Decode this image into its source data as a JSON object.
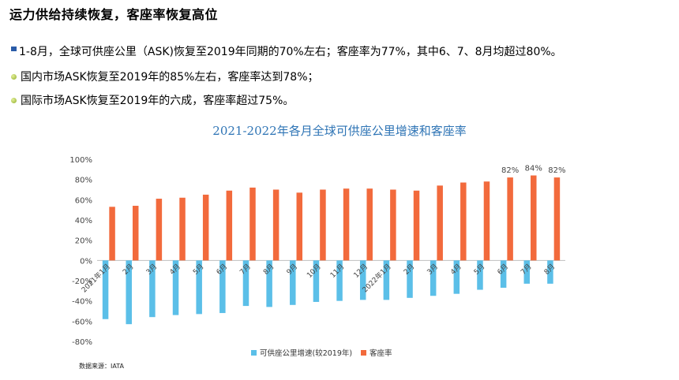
{
  "header": {
    "title": "运力供给持续恢复，客座率恢复高位",
    "bullets": [
      "1-8月，全球可供座公里（ASK)恢复至2019年同期的70%左右；客座率为77%，其中6、7、8月均超过80%。",
      "国内市场ASK恢复至2019年的85%左右，客座率达到78%；",
      "国际市场ASK恢复至2019年的六成，客座率超过75%。"
    ]
  },
  "chart_data": {
    "type": "bar",
    "title": "2021-2022年各月全球可供座公里增速和客座率",
    "categories": [
      "2021年1月",
      "2月",
      "3月",
      "4月",
      "5月",
      "6月",
      "7月",
      "8月",
      "9月",
      "10月",
      "11月",
      "12月",
      "2022年1月",
      "2月",
      "3月",
      "4月",
      "5月",
      "6月",
      "7月",
      "8月"
    ],
    "series": [
      {
        "name": "可供座公里增速(较2019年)",
        "color": "#5bbfe8",
        "values": [
          -58,
          -63,
          -56,
          -54,
          -53,
          -52,
          -45,
          -46,
          -44,
          -41,
          -40,
          -39,
          -39,
          -37,
          -35,
          -33,
          -29,
          -27,
          -23,
          -23
        ]
      },
      {
        "name": "客座率",
        "color": "#f26a3c",
        "values": [
          53,
          54,
          61,
          62,
          65,
          69,
          72,
          70,
          67,
          70,
          71,
          71,
          70,
          69,
          74,
          77,
          78,
          82,
          84,
          82
        ]
      }
    ],
    "data_labels": {
      "series": 1,
      "indices": [
        17,
        18,
        19
      ],
      "labels": [
        "82%",
        "84%",
        "82%"
      ]
    },
    "yticks": [
      "100%",
      "80%",
      "60%",
      "40%",
      "20%",
      "0%",
      "-20%",
      "-40%",
      "-60%",
      "-80%"
    ],
    "ylim": [
      -80,
      100
    ],
    "grid": false,
    "legend": "bottom-center"
  },
  "source": "数据来源：IATA"
}
